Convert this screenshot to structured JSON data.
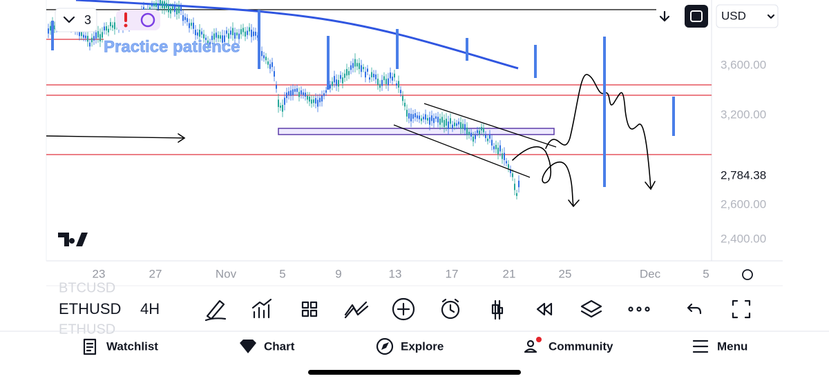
{
  "toolbar": {
    "interval_count": "3",
    "currency": "USD"
  },
  "chart": {
    "annotation": "Practice patience",
    "price_labels": [
      "3,600.00",
      "3,200.00",
      "2,784.38",
      "2,600.00",
      "2,400.00"
    ],
    "time_labels": [
      "23",
      "27",
      "Nov",
      "5",
      "9",
      "13",
      "17",
      "21",
      "25",
      "Dec",
      "5"
    ]
  },
  "symbol_bar": {
    "symbol_above": "BTCUSD",
    "symbol": "ETHUSD",
    "interval": "4H",
    "symbol_below": "ETHUSD"
  },
  "nav": {
    "items": [
      "Watchlist",
      "Chart",
      "Explore",
      "Community",
      "Menu"
    ]
  }
}
